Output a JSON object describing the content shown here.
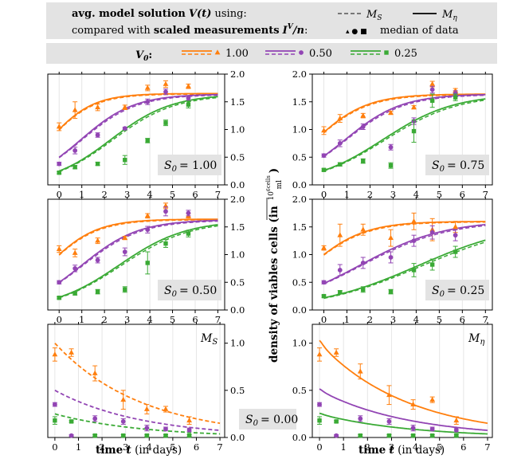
{
  "legend": {
    "line1_prefix": "avg. model solution",
    "line1_symbol": "V(t)",
    "line1_suffix": "using:",
    "line2_prefix": "compared with",
    "line2_bold": "scaled measurements",
    "line2_symbol": "I",
    "line2_sup": "V",
    "line2_div": "/n",
    "line2_colon": ":",
    "ms_label": "M",
    "ms_sub": "S",
    "meta_label": "M",
    "meta_sub": "η",
    "markers_label": "median of data",
    "markers_glyphs": "▴ ● ■",
    "v0_label": "V",
    "v0_sub": "0",
    "v0_colon": ":",
    "v0_values": [
      "1.00",
      "0.50",
      "0.25"
    ]
  },
  "colors": {
    "orange": "#ff7f0e",
    "purple": "#9245b4",
    "green": "#3aaa35",
    "grey": "#e3e3e3"
  },
  "ylabel": {
    "main": "density of viables cells (in",
    "num": "10",
    "num_sup": "6",
    "num_unit": "cells",
    "den": "ml",
    "close": ")"
  },
  "xlabel": {
    "bold": "time",
    "var": "t",
    "rest": "(in days)"
  },
  "s0_box_prefix": "S",
  "s0_box_sub": "0",
  "chart_data": [
    {
      "type": "line",
      "id": "s0-1.00",
      "s0_label": "= 1.00",
      "xlim": [
        -0.5,
        7.3
      ],
      "ylim": [
        0,
        2.0
      ],
      "xticks": [
        "0",
        "1",
        "2",
        "3",
        "4",
        "5",
        "6",
        "7"
      ],
      "yticks": [
        "0.0",
        "0.5",
        "1.0",
        "1.5",
        "2.0"
      ],
      "series": [
        {
          "name": "1.00",
          "color": "orange",
          "K": 1.65,
          "r": 1.05,
          "v0": 1.0
        },
        {
          "name": "0.50",
          "color": "purple",
          "K": 1.64,
          "r": 0.85,
          "v0": 0.5
        },
        {
          "name": "0.25",
          "color": "green",
          "K": 1.64,
          "r": 0.75,
          "v0": 0.25
        }
      ],
      "points": [
        {
          "series": "1.00",
          "marker": "tri",
          "x": [
            0,
            0.7,
            1.7,
            2.9,
            3.9,
            4.7,
            5.7
          ],
          "y": [
            1.05,
            1.35,
            1.4,
            1.4,
            1.75,
            1.82,
            1.78
          ],
          "err": [
            0.07,
            0.15,
            0.06,
            0.04,
            0.05,
            0.06,
            0.04
          ]
        },
        {
          "series": "0.50",
          "marker": "circle",
          "x": [
            0,
            0.7,
            1.7,
            2.9,
            3.9,
            4.7,
            5.7
          ],
          "y": [
            0.38,
            0.62,
            0.9,
            1.02,
            1.5,
            1.68,
            1.57
          ],
          "err": [
            0.03,
            0.06,
            0.04,
            0.02,
            0.05,
            0.05,
            0.04
          ]
        },
        {
          "series": "0.25",
          "marker": "square",
          "x": [
            0,
            0.7,
            1.7,
            2.9,
            3.9,
            4.7,
            5.7
          ],
          "y": [
            0.22,
            0.32,
            0.38,
            0.45,
            0.8,
            1.12,
            1.45
          ],
          "err": [
            0.02,
            0.03,
            0.03,
            0.08,
            0.04,
            0.05,
            0.06
          ]
        }
      ]
    },
    {
      "type": "line",
      "id": "s0-0.75",
      "s0_label": "= 0.75",
      "xlim": [
        -0.5,
        7.3
      ],
      "ylim": [
        0,
        2.0
      ],
      "xticks": [
        "0",
        "1",
        "2",
        "3",
        "4",
        "5",
        "6",
        "7"
      ],
      "yticks": [
        "0.0",
        "0.5",
        "1.0",
        "1.5",
        "2.0"
      ],
      "series": [
        {
          "name": "1.00",
          "color": "orange",
          "K": 1.64,
          "r": 0.9,
          "v0": 0.95
        },
        {
          "name": "0.50",
          "color": "purple",
          "K": 1.64,
          "r": 0.82,
          "v0": 0.52
        },
        {
          "name": "0.25",
          "color": "green",
          "K": 1.64,
          "r": 0.65,
          "v0": 0.26
        }
      ],
      "points": [
        {
          "series": "1.00",
          "marker": "tri",
          "x": [
            0,
            0.7,
            1.7,
            2.9,
            3.9,
            4.7,
            5.7
          ],
          "y": [
            0.98,
            1.2,
            1.25,
            1.3,
            1.4,
            1.82,
            1.7
          ],
          "err": [
            0.07,
            0.07,
            0.04,
            0.03,
            0.03,
            0.05,
            0.04
          ]
        },
        {
          "series": "0.50",
          "marker": "circle",
          "x": [
            0,
            0.7,
            1.7,
            2.9,
            3.9,
            4.7,
            5.7
          ],
          "y": [
            0.53,
            0.75,
            1.05,
            0.68,
            1.15,
            1.72,
            1.65
          ],
          "err": [
            0.03,
            0.06,
            0.05,
            0.05,
            0.06,
            0.06,
            0.05
          ]
        },
        {
          "series": "0.25",
          "marker": "square",
          "x": [
            0,
            0.7,
            1.7,
            2.9,
            3.9,
            4.7,
            5.7
          ],
          "y": [
            0.27,
            0.37,
            0.43,
            0.35,
            0.97,
            1.52,
            1.58
          ],
          "err": [
            0.02,
            0.03,
            0.04,
            0.05,
            0.2,
            0.12,
            0.06
          ]
        }
      ]
    },
    {
      "type": "line",
      "id": "s0-0.50",
      "s0_label": "= 0.50",
      "xlim": [
        -0.5,
        7.3
      ],
      "ylim": [
        0,
        2.0
      ],
      "xticks": [
        "0",
        "1",
        "2",
        "3",
        "4",
        "5",
        "6",
        "7"
      ],
      "yticks": [
        "0.0",
        "0.5",
        "1.0",
        "1.5",
        "2.0"
      ],
      "series": [
        {
          "name": "1.00",
          "color": "orange",
          "K": 1.64,
          "r": 0.95,
          "v0": 1.0
        },
        {
          "name": "0.50",
          "color": "purple",
          "K": 1.63,
          "r": 0.8,
          "v0": 0.5
        },
        {
          "name": "0.25",
          "color": "green",
          "K": 1.62,
          "r": 0.68,
          "v0": 0.23
        }
      ],
      "points": [
        {
          "series": "1.00",
          "marker": "tri",
          "x": [
            0,
            0.7,
            1.7,
            2.9,
            3.9,
            4.7,
            5.7
          ],
          "y": [
            1.1,
            1.03,
            1.25,
            1.3,
            1.7,
            1.88,
            1.7
          ],
          "err": [
            0.06,
            0.07,
            0.05,
            0.03,
            0.04,
            0.05,
            0.04
          ]
        },
        {
          "series": "0.50",
          "marker": "circle",
          "x": [
            0,
            0.7,
            1.7,
            2.9,
            3.9,
            4.7,
            5.7
          ],
          "y": [
            0.5,
            0.75,
            0.9,
            1.05,
            1.45,
            1.78,
            1.75
          ],
          "err": [
            0.03,
            0.06,
            0.05,
            0.07,
            0.06,
            0.08,
            0.05
          ]
        },
        {
          "series": "0.25",
          "marker": "square",
          "x": [
            0,
            0.7,
            1.7,
            2.9,
            3.9,
            4.7,
            5.7
          ],
          "y": [
            0.22,
            0.3,
            0.33,
            0.37,
            0.85,
            1.2,
            1.38
          ],
          "err": [
            0.02,
            0.03,
            0.04,
            0.05,
            0.2,
            0.07,
            0.06
          ]
        }
      ]
    },
    {
      "type": "line",
      "id": "s0-0.25",
      "s0_label": "= 0.25",
      "xlim": [
        -0.5,
        7.3
      ],
      "ylim": [
        0,
        2.0
      ],
      "xticks": [
        "0",
        "1",
        "2",
        "3",
        "4",
        "5",
        "6",
        "7"
      ],
      "yticks": [
        "0.0",
        "0.5",
        "1.0",
        "1.5",
        "2.0"
      ],
      "series": [
        {
          "name": "1.00",
          "color": "orange",
          "K": 1.6,
          "r": 0.85,
          "v0": 1.0
        },
        {
          "name": "0.50",
          "color": "purple",
          "K": 1.62,
          "r": 0.55,
          "v0": 0.48
        },
        {
          "name": "0.25",
          "color": "green",
          "K": 1.6,
          "r": 0.45,
          "v0": 0.22
        }
      ],
      "points": [
        {
          "series": "1.00",
          "marker": "tri",
          "x": [
            0,
            0.7,
            1.7,
            2.9,
            3.9,
            4.7,
            5.7
          ],
          "y": [
            1.12,
            1.35,
            1.45,
            1.3,
            1.6,
            1.45,
            1.5
          ],
          "err": [
            0.04,
            0.2,
            0.1,
            0.15,
            0.15,
            0.2,
            0.1
          ]
        },
        {
          "series": "0.50",
          "marker": "circle",
          "x": [
            0,
            0.7,
            1.7,
            2.9,
            3.9,
            4.7,
            5.7
          ],
          "y": [
            0.5,
            0.72,
            0.85,
            0.95,
            1.25,
            1.4,
            1.35
          ],
          "err": [
            0.03,
            0.1,
            0.1,
            0.1,
            0.1,
            0.12,
            0.1
          ]
        },
        {
          "series": "0.25",
          "marker": "square",
          "x": [
            0,
            0.7,
            1.7,
            2.9,
            3.9,
            4.7,
            5.7
          ],
          "y": [
            0.25,
            0.32,
            0.37,
            0.33,
            0.72,
            0.82,
            1.05
          ],
          "err": [
            0.02,
            0.03,
            0.05,
            0.04,
            0.12,
            0.1,
            0.1
          ]
        }
      ]
    },
    {
      "type": "line",
      "id": "s0-0.00-ms",
      "s0_label": "= 0.00",
      "corner_label": "M",
      "corner_sub": "S",
      "style": "dashed",
      "xlim": [
        -0.3,
        7.2
      ],
      "ylim": [
        0,
        1.2
      ],
      "xticks": [
        "0",
        "1",
        "2",
        "3",
        "4",
        "5",
        "6",
        "7"
      ],
      "yticks": [
        "0.0",
        "0.5",
        "1.0"
      ],
      "series": [
        {
          "name": "1.00",
          "color": "orange",
          "v0": 1.0,
          "d": 0.27
        },
        {
          "name": "0.50",
          "color": "purple",
          "v0": 0.5,
          "d": 0.27
        },
        {
          "name": "0.25",
          "color": "green",
          "v0": 0.25,
          "d": 0.27
        }
      ],
      "points": [
        {
          "series": "1.00",
          "marker": "tri",
          "x": [
            0,
            0.7,
            1.7,
            2.9,
            3.9,
            4.7,
            5.7
          ],
          "y": [
            0.88,
            0.9,
            0.68,
            0.4,
            0.3,
            0.3,
            0.18
          ],
          "err": [
            0.07,
            0.04,
            0.08,
            0.1,
            0.05,
            0.03,
            0.04
          ]
        },
        {
          "series": "0.50",
          "marker": "circle",
          "x": [
            0,
            0.7,
            1.7,
            2.9,
            3.9,
            4.7,
            5.7
          ],
          "y": [
            0.35,
            0.02,
            0.2,
            0.17,
            0.1,
            0.09,
            0.08
          ],
          "err": [
            0.02,
            0.01,
            0.03,
            0.03,
            0.03,
            0.02,
            0.02
          ]
        },
        {
          "series": "0.25",
          "marker": "square",
          "x": [
            0,
            0.7,
            1.7,
            2.9,
            3.9,
            4.7,
            5.7
          ],
          "y": [
            0.18,
            0.17,
            0.02,
            0.02,
            0.02,
            0.02,
            0.02
          ],
          "err": [
            0.04,
            0.01,
            0.01,
            0.01,
            0.01,
            0.01,
            0.01
          ]
        }
      ]
    },
    {
      "type": "line",
      "id": "s0-0.00-meta",
      "corner_label": "M",
      "corner_sub": "η",
      "style": "solid",
      "xlim": [
        -0.3,
        7.2
      ],
      "ylim": [
        0,
        1.2
      ],
      "xticks": [
        "0",
        "1",
        "2",
        "3",
        "4",
        "5",
        "6",
        "7"
      ],
      "yticks": [
        "0.0",
        "0.5",
        "1.0"
      ],
      "series": [
        {
          "name": "1.00",
          "color": "orange",
          "v0": 1.0,
          "d": 0.27
        },
        {
          "name": "0.50",
          "color": "purple",
          "v0": 0.5,
          "d": 0.27
        },
        {
          "name": "0.25",
          "color": "green",
          "v0": 0.25,
          "d": 0.27
        }
      ],
      "points": [
        {
          "series": "1.00",
          "marker": "tri",
          "x": [
            0,
            0.7,
            1.7,
            2.9,
            3.9,
            4.7,
            5.7
          ],
          "y": [
            0.88,
            0.9,
            0.7,
            0.45,
            0.35,
            0.4,
            0.18
          ],
          "err": [
            0.07,
            0.04,
            0.08,
            0.1,
            0.05,
            0.03,
            0.04
          ]
        },
        {
          "series": "0.50",
          "marker": "circle",
          "x": [
            0,
            0.7,
            1.7,
            2.9,
            3.9,
            4.7,
            5.7
          ],
          "y": [
            0.35,
            0.02,
            0.2,
            0.17,
            0.1,
            0.09,
            0.08
          ],
          "err": [
            0.02,
            0.01,
            0.03,
            0.03,
            0.03,
            0.02,
            0.02
          ]
        },
        {
          "series": "0.25",
          "marker": "square",
          "x": [
            0,
            0.7,
            1.7,
            2.9,
            3.9,
            4.7,
            5.7
          ],
          "y": [
            0.18,
            0.17,
            0.02,
            0.02,
            0.02,
            0.02,
            0.02
          ],
          "err": [
            0.04,
            0.01,
            0.01,
            0.01,
            0.01,
            0.01,
            0.01
          ]
        }
      ]
    }
  ]
}
